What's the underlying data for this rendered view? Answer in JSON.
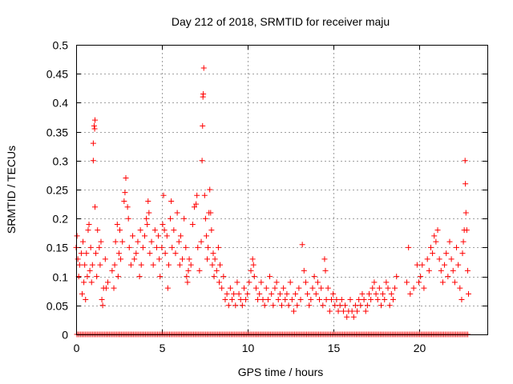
{
  "chart_data": {
    "type": "scatter",
    "title": "Day 212 of 2018, SRMTID for receiver maju",
    "xlabel": "GPS time / hours",
    "ylabel": "SRMTID / TECUs",
    "xlim": [
      0,
      24
    ],
    "ylim": [
      0,
      0.5
    ],
    "xticks": [
      0,
      5,
      10,
      15,
      20
    ],
    "xtick_labels": [
      "0",
      "5",
      "10",
      "15",
      "20"
    ],
    "yticks": [
      0,
      0.05,
      0.1,
      0.15,
      0.2,
      0.25,
      0.3,
      0.35,
      0.4,
      0.45,
      0.5
    ],
    "ytick_labels": [
      "0",
      "0.05",
      "0.1",
      "0.15",
      "0.2",
      "0.25",
      "0.3",
      "0.35",
      "0.4",
      "0.45",
      "0.5"
    ],
    "grid": true,
    "marker": "+",
    "series": [
      {
        "name": "SRMTID",
        "color": "#ff0000",
        "points": [
          [
            0.0,
            0.15
          ],
          [
            0.05,
            0.17
          ],
          [
            0.1,
            0.13
          ],
          [
            0.15,
            0.1
          ],
          [
            0.2,
            0.12
          ],
          [
            0.3,
            0.14
          ],
          [
            0.35,
            0.07
          ],
          [
            0.4,
            0.16
          ],
          [
            0.45,
            0.09
          ],
          [
            0.5,
            0.12
          ],
          [
            0.55,
            0.06
          ],
          [
            0.6,
            0.14
          ],
          [
            0.65,
            0.1
          ],
          [
            0.7,
            0.18
          ],
          [
            0.75,
            0.19
          ],
          [
            0.8,
            0.11
          ],
          [
            0.85,
            0.15
          ],
          [
            0.9,
            0.09
          ],
          [
            0.95,
            0.12
          ],
          [
            1.0,
            0.3
          ],
          [
            1.0,
            0.33
          ],
          [
            1.05,
            0.36
          ],
          [
            1.08,
            0.355
          ],
          [
            1.1,
            0.37
          ],
          [
            1.1,
            0.22
          ],
          [
            1.15,
            0.14
          ],
          [
            1.2,
            0.1
          ],
          [
            1.25,
            0.18
          ],
          [
            1.35,
            0.15
          ],
          [
            1.4,
            0.12
          ],
          [
            1.45,
            0.16
          ],
          [
            1.5,
            0.06
          ],
          [
            1.55,
            0.05
          ],
          [
            1.6,
            0.08
          ],
          [
            1.7,
            0.13
          ],
          [
            1.75,
            0.08
          ],
          [
            1.85,
            0.09
          ],
          [
            2.1,
            0.11
          ],
          [
            2.2,
            0.08
          ],
          [
            2.25,
            0.12
          ],
          [
            2.3,
            0.16
          ],
          [
            2.4,
            0.19
          ],
          [
            2.45,
            0.1
          ],
          [
            2.5,
            0.14
          ],
          [
            2.55,
            0.18
          ],
          [
            2.6,
            0.13
          ],
          [
            2.7,
            0.16
          ],
          [
            2.8,
            0.23
          ],
          [
            2.85,
            0.245
          ],
          [
            2.9,
            0.27
          ],
          [
            3.0,
            0.22
          ],
          [
            3.05,
            0.2
          ],
          [
            3.1,
            0.15
          ],
          [
            3.2,
            0.12
          ],
          [
            3.3,
            0.17
          ],
          [
            3.4,
            0.13
          ],
          [
            3.5,
            0.14
          ],
          [
            3.6,
            0.16
          ],
          [
            3.7,
            0.1
          ],
          [
            3.75,
            0.18
          ],
          [
            3.8,
            0.12
          ],
          [
            3.9,
            0.15
          ],
          [
            4.0,
            0.17
          ],
          [
            4.1,
            0.2
          ],
          [
            4.15,
            0.19
          ],
          [
            4.2,
            0.23
          ],
          [
            4.25,
            0.21
          ],
          [
            4.3,
            0.14
          ],
          [
            4.4,
            0.16
          ],
          [
            4.5,
            0.12
          ],
          [
            4.6,
            0.18
          ],
          [
            4.7,
            0.15
          ],
          [
            4.8,
            0.17
          ],
          [
            4.85,
            0.13
          ],
          [
            4.9,
            0.1
          ],
          [
            5.0,
            0.15
          ],
          [
            5.05,
            0.19
          ],
          [
            5.1,
            0.24
          ],
          [
            5.15,
            0.18
          ],
          [
            5.2,
            0.14
          ],
          [
            5.3,
            0.17
          ],
          [
            5.35,
            0.08
          ],
          [
            5.4,
            0.12
          ],
          [
            5.5,
            0.2
          ],
          [
            5.55,
            0.23
          ],
          [
            5.6,
            0.15
          ],
          [
            5.7,
            0.18
          ],
          [
            5.8,
            0.14
          ],
          [
            5.9,
            0.21
          ],
          [
            6.0,
            0.16
          ],
          [
            6.05,
            0.12
          ],
          [
            6.1,
            0.17
          ],
          [
            6.2,
            0.13
          ],
          [
            6.3,
            0.2
          ],
          [
            6.4,
            0.15
          ],
          [
            6.45,
            0.1
          ],
          [
            6.5,
            0.09
          ],
          [
            6.55,
            0.11
          ],
          [
            6.6,
            0.13
          ],
          [
            6.7,
            0.12
          ],
          [
            6.8,
            0.19
          ],
          [
            6.9,
            0.22
          ],
          [
            7.0,
            0.225
          ],
          [
            7.05,
            0.24
          ],
          [
            7.1,
            0.15
          ],
          [
            7.2,
            0.11
          ],
          [
            7.3,
            0.16
          ],
          [
            7.35,
            0.3
          ],
          [
            7.38,
            0.36
          ],
          [
            7.4,
            0.41
          ],
          [
            7.42,
            0.415
          ],
          [
            7.45,
            0.46
          ],
          [
            7.5,
            0.24
          ],
          [
            7.55,
            0.2
          ],
          [
            7.6,
            0.17
          ],
          [
            7.65,
            0.13
          ],
          [
            7.7,
            0.15
          ],
          [
            7.75,
            0.21
          ],
          [
            7.8,
            0.25
          ],
          [
            7.85,
            0.21
          ],
          [
            7.9,
            0.18
          ],
          [
            7.95,
            0.12
          ],
          [
            8.0,
            0.14
          ],
          [
            8.05,
            0.1
          ],
          [
            8.1,
            0.13
          ],
          [
            8.2,
            0.11
          ],
          [
            8.3,
            0.15
          ],
          [
            8.35,
            0.09
          ],
          [
            8.4,
            0.12
          ],
          [
            8.5,
            0.08
          ],
          [
            8.6,
            0.1
          ],
          [
            8.7,
            0.06
          ],
          [
            8.8,
            0.07
          ],
          [
            8.9,
            0.05
          ],
          [
            9.0,
            0.08
          ],
          [
            9.1,
            0.06
          ],
          [
            9.2,
            0.07
          ],
          [
            9.3,
            0.05
          ],
          [
            9.4,
            0.09
          ],
          [
            9.5,
            0.07
          ],
          [
            9.6,
            0.06
          ],
          [
            9.7,
            0.05
          ],
          [
            9.8,
            0.08
          ],
          [
            9.9,
            0.06
          ],
          [
            10.0,
            0.07
          ],
          [
            10.1,
            0.09
          ],
          [
            10.2,
            0.11
          ],
          [
            10.3,
            0.13
          ],
          [
            10.35,
            0.12
          ],
          [
            10.4,
            0.1
          ],
          [
            10.5,
            0.08
          ],
          [
            10.6,
            0.06
          ],
          [
            10.7,
            0.07
          ],
          [
            10.8,
            0.09
          ],
          [
            10.9,
            0.06
          ],
          [
            11.0,
            0.05
          ],
          [
            11.1,
            0.08
          ],
          [
            11.2,
            0.06
          ],
          [
            11.3,
            0.1
          ],
          [
            11.4,
            0.07
          ],
          [
            11.5,
            0.05
          ],
          [
            11.6,
            0.08
          ],
          [
            11.7,
            0.09
          ],
          [
            11.8,
            0.06
          ],
          [
            11.9,
            0.07
          ],
          [
            12.0,
            0.05
          ],
          [
            12.1,
            0.08
          ],
          [
            12.2,
            0.06
          ],
          [
            12.3,
            0.07
          ],
          [
            12.4,
            0.05
          ],
          [
            12.5,
            0.09
          ],
          [
            12.6,
            0.06
          ],
          [
            12.7,
            0.04
          ],
          [
            12.8,
            0.07
          ],
          [
            12.9,
            0.05
          ],
          [
            13.0,
            0.08
          ],
          [
            13.1,
            0.06
          ],
          [
            13.2,
            0.155
          ],
          [
            13.3,
            0.11
          ],
          [
            13.4,
            0.09
          ],
          [
            13.5,
            0.07
          ],
          [
            13.6,
            0.05
          ],
          [
            13.7,
            0.06
          ],
          [
            13.8,
            0.08
          ],
          [
            13.9,
            0.1
          ],
          [
            14.0,
            0.07
          ],
          [
            14.1,
            0.09
          ],
          [
            14.2,
            0.06
          ],
          [
            14.3,
            0.08
          ],
          [
            14.4,
            0.05
          ],
          [
            14.5,
            0.13
          ],
          [
            14.55,
            0.11
          ],
          [
            14.6,
            0.06
          ],
          [
            14.7,
            0.08
          ],
          [
            14.8,
            0.04
          ],
          [
            14.9,
            0.06
          ],
          [
            15.0,
            0.07
          ],
          [
            15.1,
            0.05
          ],
          [
            15.2,
            0.06
          ],
          [
            15.3,
            0.04
          ],
          [
            15.4,
            0.05
          ],
          [
            15.5,
            0.06
          ],
          [
            15.6,
            0.04
          ],
          [
            15.7,
            0.05
          ],
          [
            15.8,
            0.03
          ],
          [
            15.9,
            0.04
          ],
          [
            16.0,
            0.06
          ],
          [
            16.1,
            0.04
          ],
          [
            16.2,
            0.03
          ],
          [
            16.3,
            0.05
          ],
          [
            16.4,
            0.04
          ],
          [
            16.5,
            0.06
          ],
          [
            16.6,
            0.05
          ],
          [
            16.7,
            0.07
          ],
          [
            16.8,
            0.06
          ],
          [
            16.9,
            0.04
          ],
          [
            17.0,
            0.05
          ],
          [
            17.1,
            0.07
          ],
          [
            17.2,
            0.06
          ],
          [
            17.3,
            0.08
          ],
          [
            17.4,
            0.09
          ],
          [
            17.5,
            0.07
          ],
          [
            17.6,
            0.06
          ],
          [
            17.7,
            0.08
          ],
          [
            17.8,
            0.05
          ],
          [
            17.9,
            0.07
          ],
          [
            18.0,
            0.06
          ],
          [
            18.1,
            0.09
          ],
          [
            18.2,
            0.08
          ],
          [
            18.3,
            0.05
          ],
          [
            18.4,
            0.07
          ],
          [
            18.5,
            0.06
          ],
          [
            18.6,
            0.08
          ],
          [
            18.7,
            0.1
          ],
          [
            19.3,
            0.09
          ],
          [
            19.4,
            0.15
          ],
          [
            19.5,
            0.07
          ],
          [
            19.7,
            0.08
          ],
          [
            19.9,
            0.12
          ],
          [
            20.0,
            0.09
          ],
          [
            20.1,
            0.1
          ],
          [
            20.2,
            0.12
          ],
          [
            20.3,
            0.08
          ],
          [
            20.5,
            0.13
          ],
          [
            20.6,
            0.11
          ],
          [
            20.7,
            0.15
          ],
          [
            20.8,
            0.14
          ],
          [
            20.9,
            0.17
          ],
          [
            21.0,
            0.16
          ],
          [
            21.1,
            0.18
          ],
          [
            21.2,
            0.13
          ],
          [
            21.3,
            0.11
          ],
          [
            21.4,
            0.09
          ],
          [
            21.5,
            0.12
          ],
          [
            21.6,
            0.14
          ],
          [
            21.7,
            0.1
          ],
          [
            21.8,
            0.16
          ],
          [
            21.9,
            0.13
          ],
          [
            22.0,
            0.11
          ],
          [
            22.1,
            0.09
          ],
          [
            22.2,
            0.15
          ],
          [
            22.3,
            0.12
          ],
          [
            22.4,
            0.08
          ],
          [
            22.5,
            0.06
          ],
          [
            22.55,
            0.14
          ],
          [
            22.6,
            0.16
          ],
          [
            22.65,
            0.18
          ],
          [
            22.7,
            0.3
          ],
          [
            22.72,
            0.26
          ],
          [
            22.75,
            0.21
          ],
          [
            22.8,
            0.18
          ],
          [
            22.85,
            0.11
          ],
          [
            22.9,
            0.07
          ]
        ]
      }
    ]
  }
}
